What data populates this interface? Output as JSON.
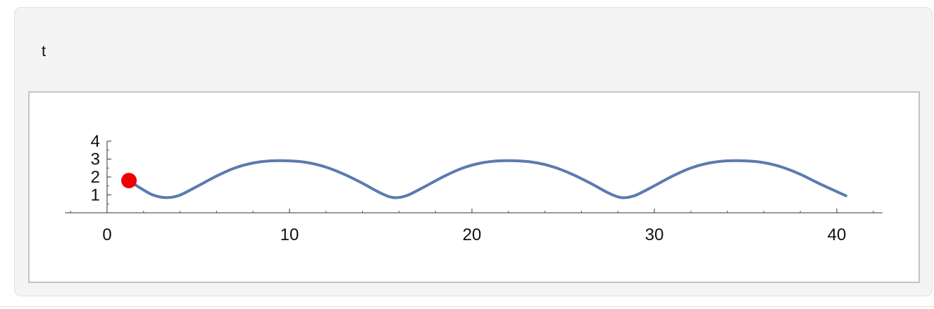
{
  "panel": {
    "variable_label": "t"
  },
  "chart_data": {
    "type": "line",
    "title": "",
    "xlabel": "",
    "ylabel": "",
    "xlim": [
      -2.3,
      42.5
    ],
    "ylim": [
      0,
      4
    ],
    "x_ticks": [
      0,
      10,
      20,
      30,
      40
    ],
    "x_tick_labels": [
      "0",
      "10",
      "20",
      "30",
      "40"
    ],
    "y_ticks": [
      1,
      2,
      3,
      4
    ],
    "y_tick_labels": [
      "1",
      "2",
      "3",
      "4"
    ],
    "grid": false,
    "series": [
      {
        "color": "#5b7bb0",
        "points": [
          [
            1.2,
            1.8
          ],
          [
            1.8,
            1.4
          ],
          [
            2.5,
            1.0
          ],
          [
            3.2,
            0.85
          ],
          [
            3.9,
            0.95
          ],
          [
            4.8,
            1.4
          ],
          [
            6.0,
            2.05
          ],
          [
            7.0,
            2.5
          ],
          [
            8.0,
            2.78
          ],
          [
            9.0,
            2.9
          ],
          [
            10.0,
            2.9
          ],
          [
            11.0,
            2.8
          ],
          [
            12.0,
            2.55
          ],
          [
            13.0,
            2.15
          ],
          [
            14.0,
            1.65
          ],
          [
            15.0,
            1.1
          ],
          [
            15.7,
            0.85
          ],
          [
            16.4,
            0.95
          ],
          [
            17.3,
            1.4
          ],
          [
            18.5,
            2.05
          ],
          [
            19.5,
            2.5
          ],
          [
            20.5,
            2.78
          ],
          [
            21.5,
            2.9
          ],
          [
            22.5,
            2.9
          ],
          [
            23.5,
            2.8
          ],
          [
            24.5,
            2.55
          ],
          [
            25.5,
            2.15
          ],
          [
            26.5,
            1.65
          ],
          [
            27.5,
            1.1
          ],
          [
            28.2,
            0.85
          ],
          [
            28.9,
            0.95
          ],
          [
            29.8,
            1.4
          ],
          [
            31.0,
            2.05
          ],
          [
            32.0,
            2.5
          ],
          [
            33.0,
            2.78
          ],
          [
            34.0,
            2.9
          ],
          [
            35.0,
            2.9
          ],
          [
            36.0,
            2.8
          ],
          [
            37.0,
            2.55
          ],
          [
            38.0,
            2.15
          ],
          [
            39.0,
            1.65
          ],
          [
            40.5,
            0.95
          ]
        ]
      }
    ],
    "marker": {
      "x": 1.2,
      "y": 1.8,
      "color": "#ee0000"
    }
  }
}
